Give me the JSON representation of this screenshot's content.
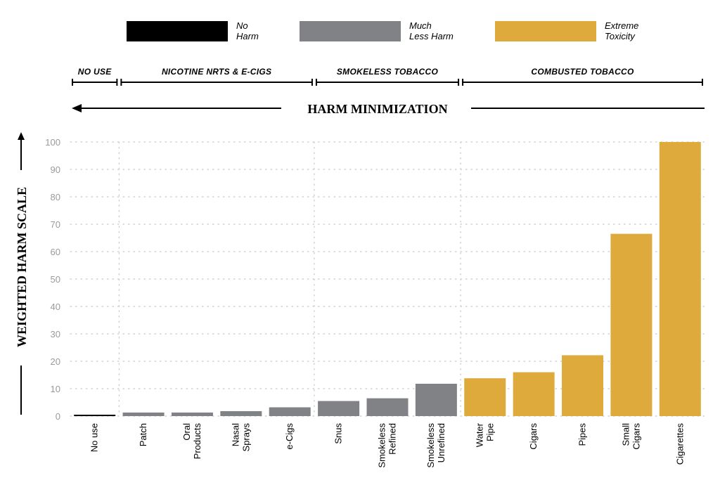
{
  "legend": [
    {
      "lines": [
        "No",
        "Harm"
      ],
      "color": "#000000"
    },
    {
      "lines": [
        "Much",
        "Less Harm"
      ],
      "color": "#808285"
    },
    {
      "lines": [
        "Extreme",
        "Toxicity"
      ],
      "color": "#ddaa3b"
    }
  ],
  "groups": [
    {
      "label": "NO USE",
      "from": 0,
      "to": 0
    },
    {
      "label": "NICOTINE NRTS & E-CIGS",
      "from": 1,
      "to": 4
    },
    {
      "label": "SMOKELESS TOBACCO",
      "from": 5,
      "to": 7
    },
    {
      "label": "COMBUSTED TOBACCO",
      "from": 8,
      "to": 12
    }
  ],
  "banner": "HARM MINIMIZATION",
  "chart_data": {
    "type": "bar",
    "ylabel": "WEIGHTED HARM SCALE",
    "ylim": [
      0,
      100
    ],
    "yticks": [
      0,
      10,
      20,
      30,
      40,
      50,
      60,
      70,
      80,
      90,
      100
    ],
    "grid": true,
    "legend_position": "top",
    "categories": [
      [
        "No use"
      ],
      [
        "Patch"
      ],
      [
        "Oral",
        "Products"
      ],
      [
        "Nasal",
        "Sprays"
      ],
      [
        "e-Cigs"
      ],
      [
        "Snus"
      ],
      [
        "Smokeless",
        "Refined"
      ],
      [
        "Smokeless",
        "Unrefined"
      ],
      [
        "Water",
        "Pipe"
      ],
      [
        "Cigars"
      ],
      [
        "Pipes"
      ],
      [
        "Small",
        "Cigars"
      ],
      [
        "Cigarettes"
      ]
    ],
    "values": [
      0.5,
      1.3,
      1.3,
      1.8,
      3.2,
      5.5,
      6.5,
      11.8,
      13.8,
      16,
      22.2,
      66.5,
      100
    ],
    "bar_colors": [
      "#000000",
      "#808285",
      "#808285",
      "#808285",
      "#808285",
      "#808285",
      "#808285",
      "#808285",
      "#ddaa3b",
      "#ddaa3b",
      "#ddaa3b",
      "#ddaa3b",
      "#ddaa3b"
    ]
  }
}
